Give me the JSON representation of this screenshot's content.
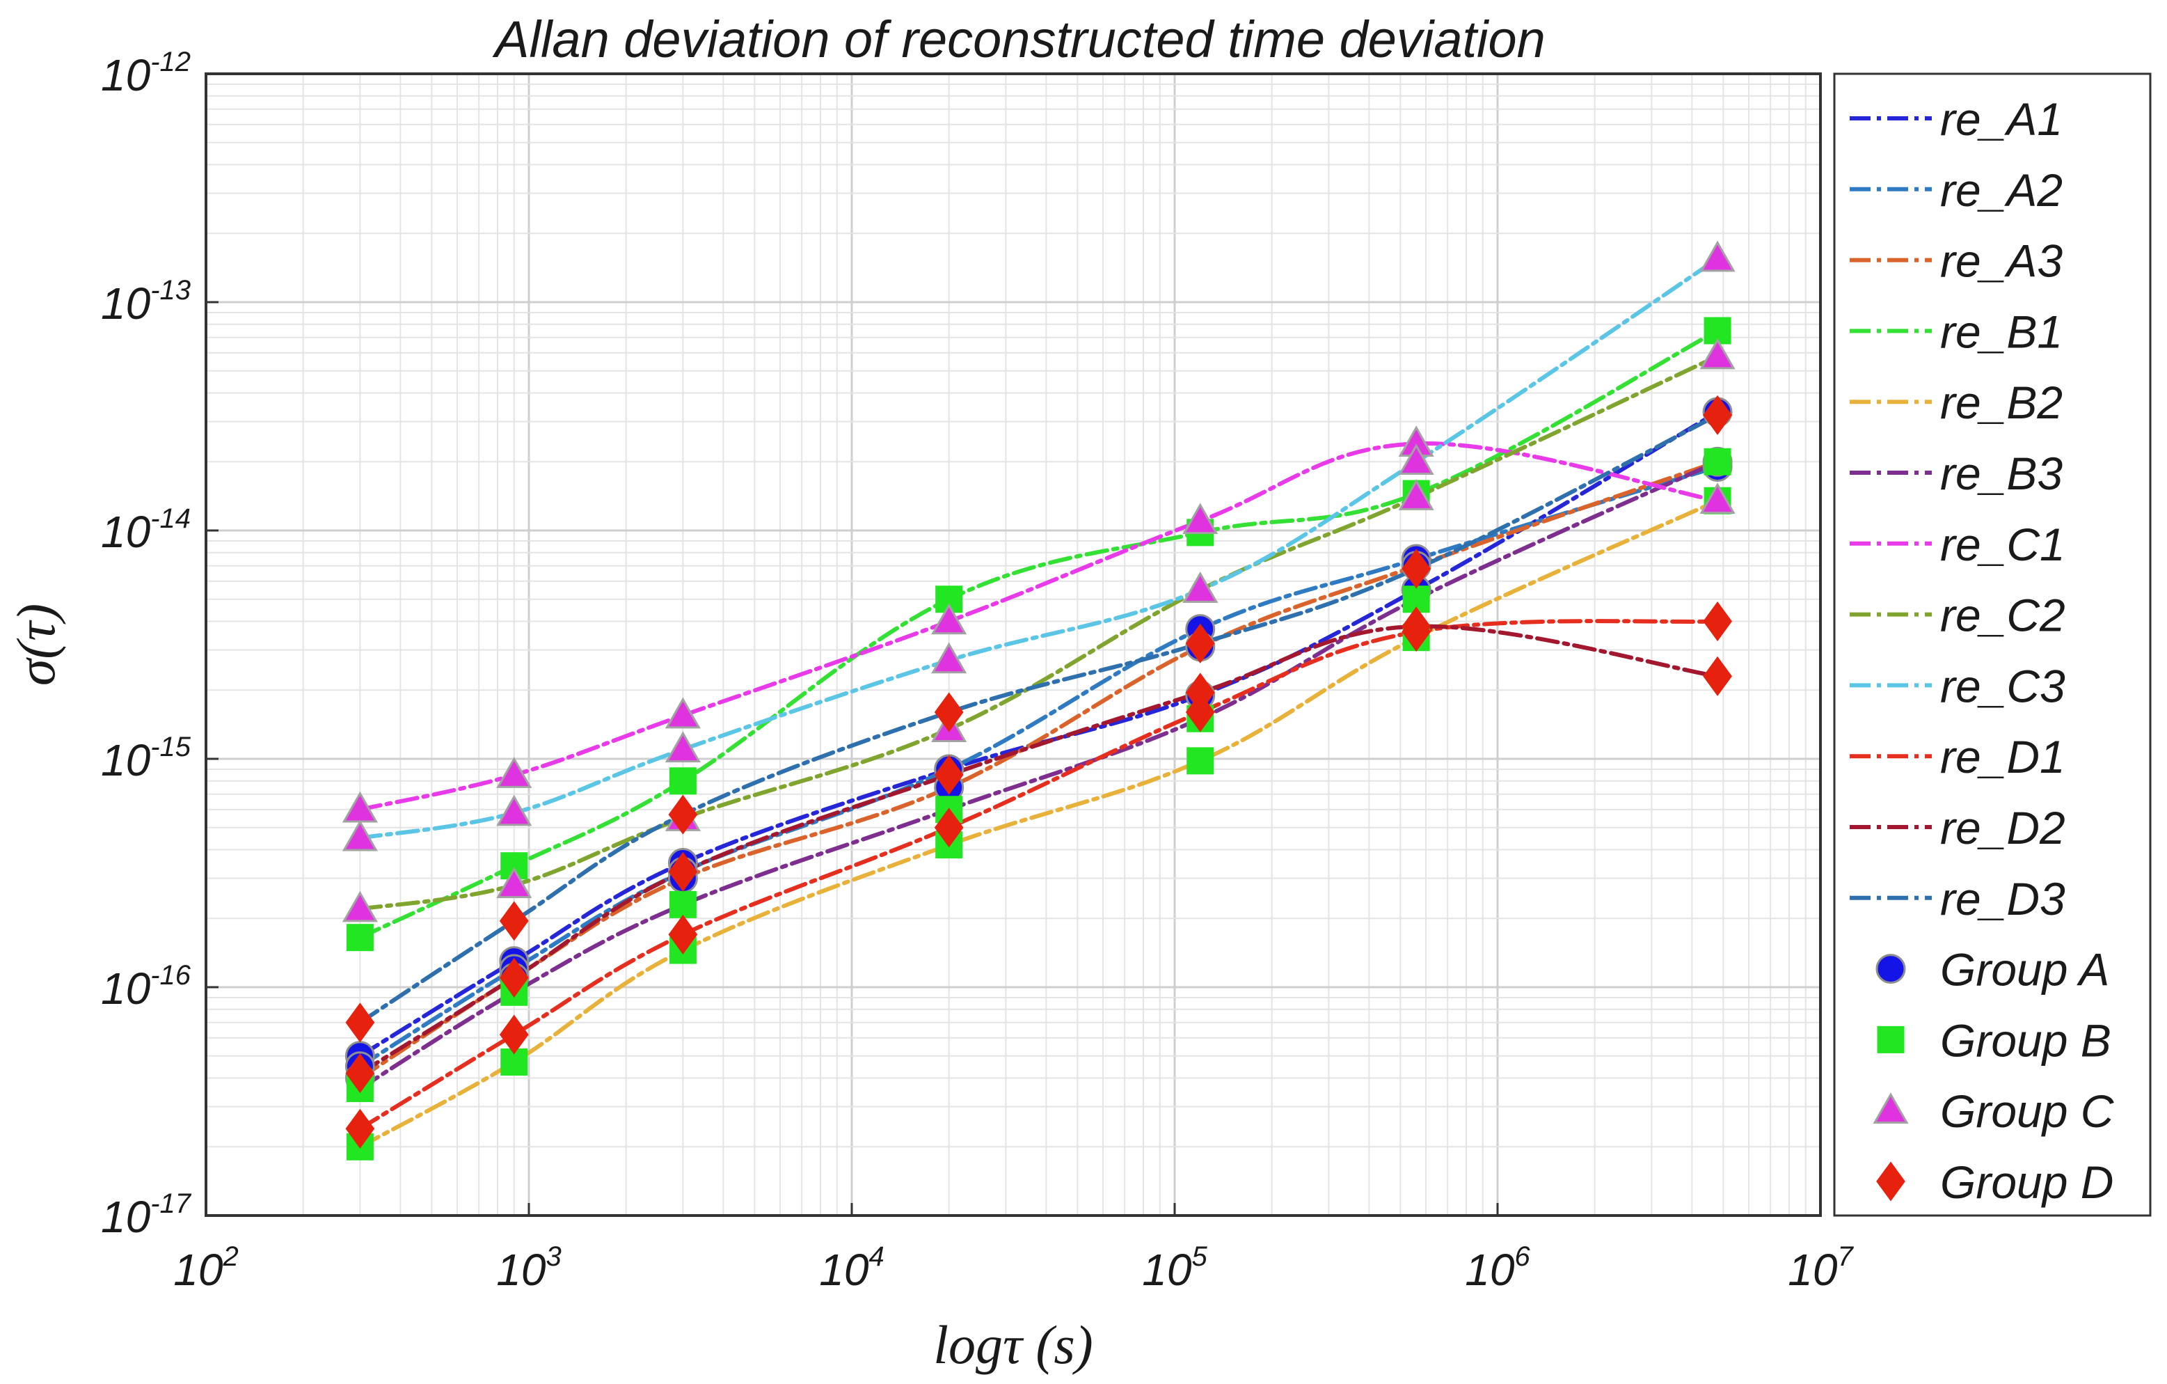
{
  "chart_data": {
    "type": "line",
    "title": "Allan deviation of reconstructed time deviation",
    "xlabel": "logτ (s)",
    "ylabel": "σ(τ)",
    "xscale": "log",
    "yscale": "log",
    "xlim": [
      100,
      10000000
    ],
    "ylim": [
      1e-17,
      1e-12
    ],
    "grid": true,
    "legend_position": "right",
    "x_ticks": [
      {
        "base": "10",
        "exp": "2"
      },
      {
        "base": "10",
        "exp": "3"
      },
      {
        "base": "10",
        "exp": "4"
      },
      {
        "base": "10",
        "exp": "5"
      },
      {
        "base": "10",
        "exp": "6"
      },
      {
        "base": "10",
        "exp": "7"
      }
    ],
    "y_ticks": [
      {
        "base": "10",
        "exp": "-17"
      },
      {
        "base": "10",
        "exp": "-16"
      },
      {
        "base": "10",
        "exp": "-15"
      },
      {
        "base": "10",
        "exp": "-14"
      },
      {
        "base": "10",
        "exp": "-13"
      },
      {
        "base": "10",
        "exp": "-12"
      }
    ],
    "x": [
      300,
      900,
      3000,
      20000,
      120000,
      560000,
      4800000
    ],
    "series": [
      {
        "name": "re_A1",
        "group": "A",
        "color": "#2626d9",
        "values": [
          5e-17,
          1.3e-16,
          3.5e-16,
          9e-16,
          1.9e-15,
          5.5e-15,
          3.3e-14
        ]
      },
      {
        "name": "re_A2",
        "group": "A",
        "color": "#2e7bc4",
        "values": [
          4.5e-17,
          1.2e-16,
          3.2e-16,
          9e-16,
          3.7e-15,
          7.5e-15,
          1.9e-14
        ]
      },
      {
        "name": "re_A3",
        "group": "A",
        "color": "#d9632a",
        "values": [
          4e-17,
          1.1e-16,
          3e-16,
          7.5e-16,
          3.1e-15,
          7e-15,
          2e-14
        ]
      },
      {
        "name": "re_B1",
        "group": "B",
        "color": "#33e033",
        "values": [
          1.65e-16,
          3.4e-16,
          8e-16,
          5e-15,
          9.8e-15,
          1.45e-14,
          7.5e-14
        ]
      },
      {
        "name": "re_B2",
        "group": "B",
        "color": "#e8b23a",
        "values": [
          2e-17,
          4.7e-17,
          1.45e-16,
          4.2e-16,
          9.8e-16,
          3.4e-15,
          1.35e-14
        ]
      },
      {
        "name": "re_B3",
        "group": "B",
        "color": "#7d2e8f",
        "values": [
          3.6e-17,
          9.5e-17,
          2.3e-16,
          6e-16,
          1.5e-15,
          5e-15,
          2e-14
        ]
      },
      {
        "name": "re_C1",
        "group": "C",
        "color": "#e83ae8",
        "values": [
          6e-16,
          8.5e-16,
          1.55e-15,
          4e-15,
          1.1e-14,
          2.4e-14,
          1.35e-14
        ]
      },
      {
        "name": "re_C2",
        "group": "C",
        "color": "#7fa52e",
        "values": [
          2.2e-16,
          2.8e-16,
          5.5e-16,
          1.35e-15,
          5.5e-15,
          1.4e-14,
          5.8e-14
        ]
      },
      {
        "name": "re_C3",
        "group": "C",
        "color": "#5bc5e6",
        "values": [
          4.5e-16,
          5.8e-16,
          1.1e-15,
          2.7e-15,
          5.5e-15,
          2e-14,
          1.55e-13
        ]
      },
      {
        "name": "re_D1",
        "group": "D",
        "color": "#e62e1e",
        "values": [
          2.4e-17,
          6.2e-17,
          1.7e-16,
          5e-16,
          1.6e-15,
          3.6e-15,
          4e-15
        ]
      },
      {
        "name": "re_D2",
        "group": "D",
        "color": "#a3182e",
        "values": [
          4.2e-17,
          1.1e-16,
          3.2e-16,
          8.5e-16,
          1.95e-15,
          3.8e-15,
          2.3e-15
        ]
      },
      {
        "name": "re_D3",
        "group": "D",
        "color": "#2e6fad",
        "values": [
          7e-17,
          1.95e-16,
          5.7e-16,
          1.6e-15,
          3.2e-15,
          6.8e-15,
          3.2e-14
        ]
      }
    ],
    "markers": [
      {
        "name": "Group A",
        "shape": "circle",
        "fill": "#1414e6",
        "stroke": "#8f8f8f",
        "series": [
          "re_A1",
          "re_A2",
          "re_A3"
        ]
      },
      {
        "name": "Group B",
        "shape": "square",
        "fill": "#22e622",
        "stroke": "#22e622",
        "series": [
          "re_B1",
          "re_B2",
          "re_B3"
        ]
      },
      {
        "name": "Group C",
        "shape": "triangle",
        "fill": "#e033e0",
        "stroke": "#a2a2a2",
        "series": [
          "re_C1",
          "re_C2",
          "re_C3"
        ]
      },
      {
        "name": "Group D",
        "shape": "diamond",
        "fill": "#e6220e",
        "stroke": "#e6220e",
        "series": [
          "re_D1",
          "re_D2",
          "re_D3"
        ]
      }
    ]
  }
}
